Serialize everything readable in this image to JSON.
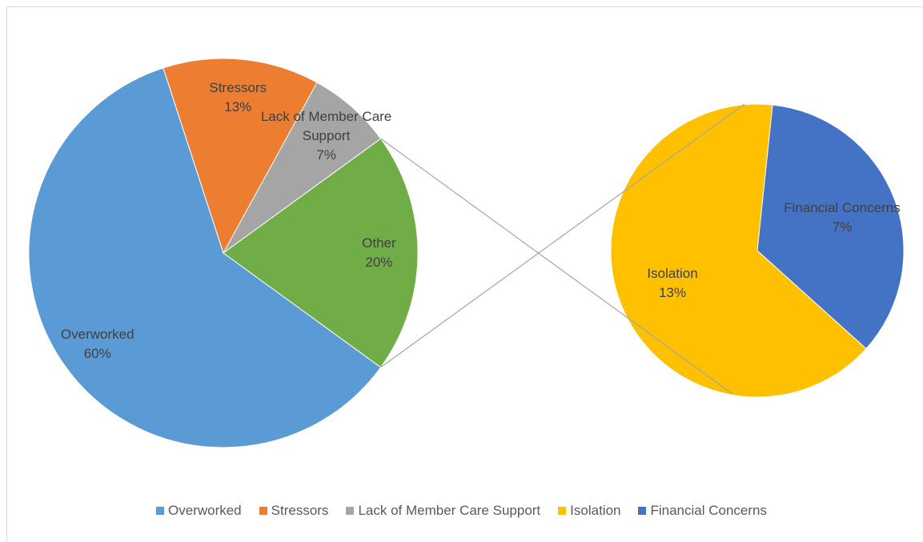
{
  "chart_data": {
    "type": "pie-of-pie",
    "categories": [
      "Overworked",
      "Stressors",
      "Lack of Member Care Support",
      "Other"
    ],
    "values": [
      60,
      13,
      7,
      20
    ],
    "value_labels": [
      "60%",
      "13%",
      "7%",
      "20%"
    ],
    "colors": [
      "#5b9bd5",
      "#ed7d31",
      "#a5a5a5",
      "#70ad47"
    ],
    "secondary": {
      "categories": [
        "Isolation",
        "Financial Concerns"
      ],
      "values": [
        13,
        7
      ],
      "value_labels": [
        "13%",
        "7%"
      ],
      "colors": [
        "#ffc000",
        "#4472c4"
      ]
    },
    "legend": "bottom"
  }
}
